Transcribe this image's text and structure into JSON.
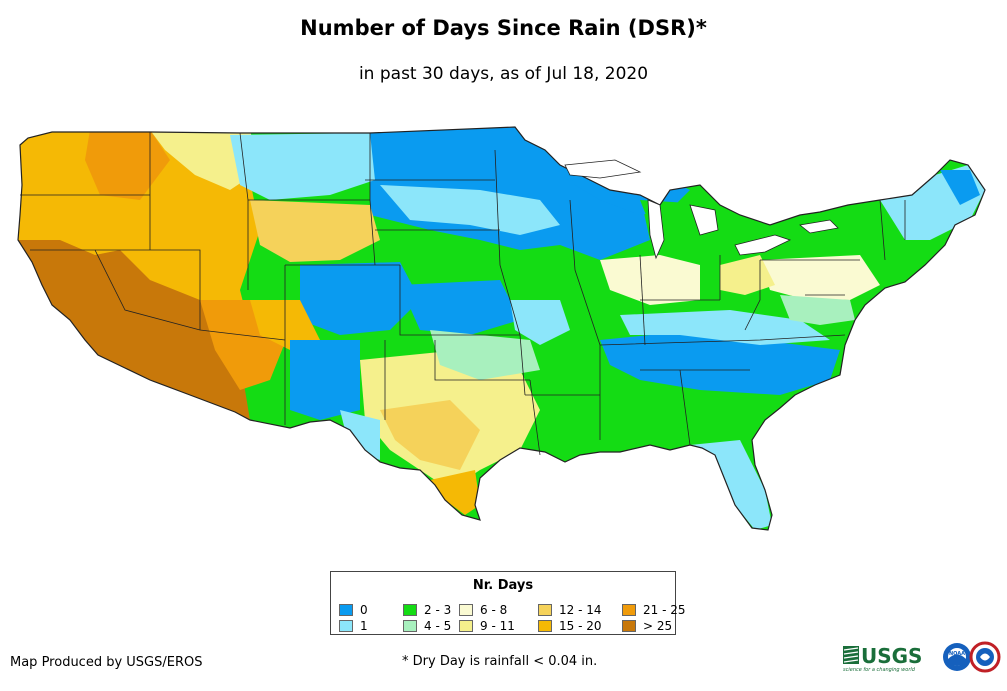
{
  "header": {
    "title": "Number of Days Since Rain (DSR)*",
    "subtitle": "in past 30 days, as of Jul 18, 2020"
  },
  "legend": {
    "title": "Nr. Days",
    "items": [
      {
        "label": "0",
        "color": "#0a9bf0"
      },
      {
        "label": "1",
        "color": "#8ce6fa"
      },
      {
        "label": "2 - 3",
        "color": "#14dc14"
      },
      {
        "label": "4 - 5",
        "color": "#a8f0be"
      },
      {
        "label": "6 - 8",
        "color": "#fafad2"
      },
      {
        "label": "9 - 11",
        "color": "#f5f08c"
      },
      {
        "label": "12 - 14",
        "color": "#f5d25a"
      },
      {
        "label": "15 - 20",
        "color": "#f5b905"
      },
      {
        "label": "21 - 25",
        "color": "#f09b0a"
      },
      {
        "label": "> 25",
        "color": "#c8780a"
      }
    ]
  },
  "footer": {
    "credit": "Map Produced by USGS/EROS",
    "note": "* Dry Day is rainfall < 0.04 in."
  },
  "logos": {
    "usgs_text": "USGS",
    "usgs_tagline": "science for a changing world",
    "noaa_text": "NOAA"
  }
}
